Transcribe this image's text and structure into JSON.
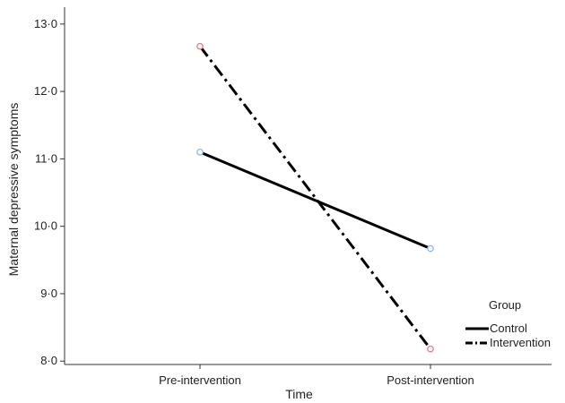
{
  "chart_data": {
    "type": "line",
    "xlabel": "Time",
    "ylabel": "Maternal depressive symptoms",
    "categories": [
      "Pre-intervention",
      "Post-intervention"
    ],
    "ylim": [
      7.95,
      13.25
    ],
    "yticks": [
      8.0,
      9.0,
      10.0,
      11.0,
      12.0,
      13.0
    ],
    "ytick_labels": [
      "8·0",
      "9·0",
      "10·0",
      "11·0",
      "12·0",
      "13·0"
    ],
    "grid": false,
    "legend": {
      "title": "Group",
      "placement": "bottom-right"
    },
    "series": [
      {
        "name": "Control",
        "values": [
          11.1,
          9.67
        ],
        "line_style": "solid",
        "line_color": "#000000",
        "marker_color": "#8fb8de"
      },
      {
        "name": "Intervention",
        "values": [
          12.67,
          8.18
        ],
        "line_style": "dash-dot",
        "line_color": "#000000",
        "marker_color": "#e07a8c"
      }
    ]
  }
}
